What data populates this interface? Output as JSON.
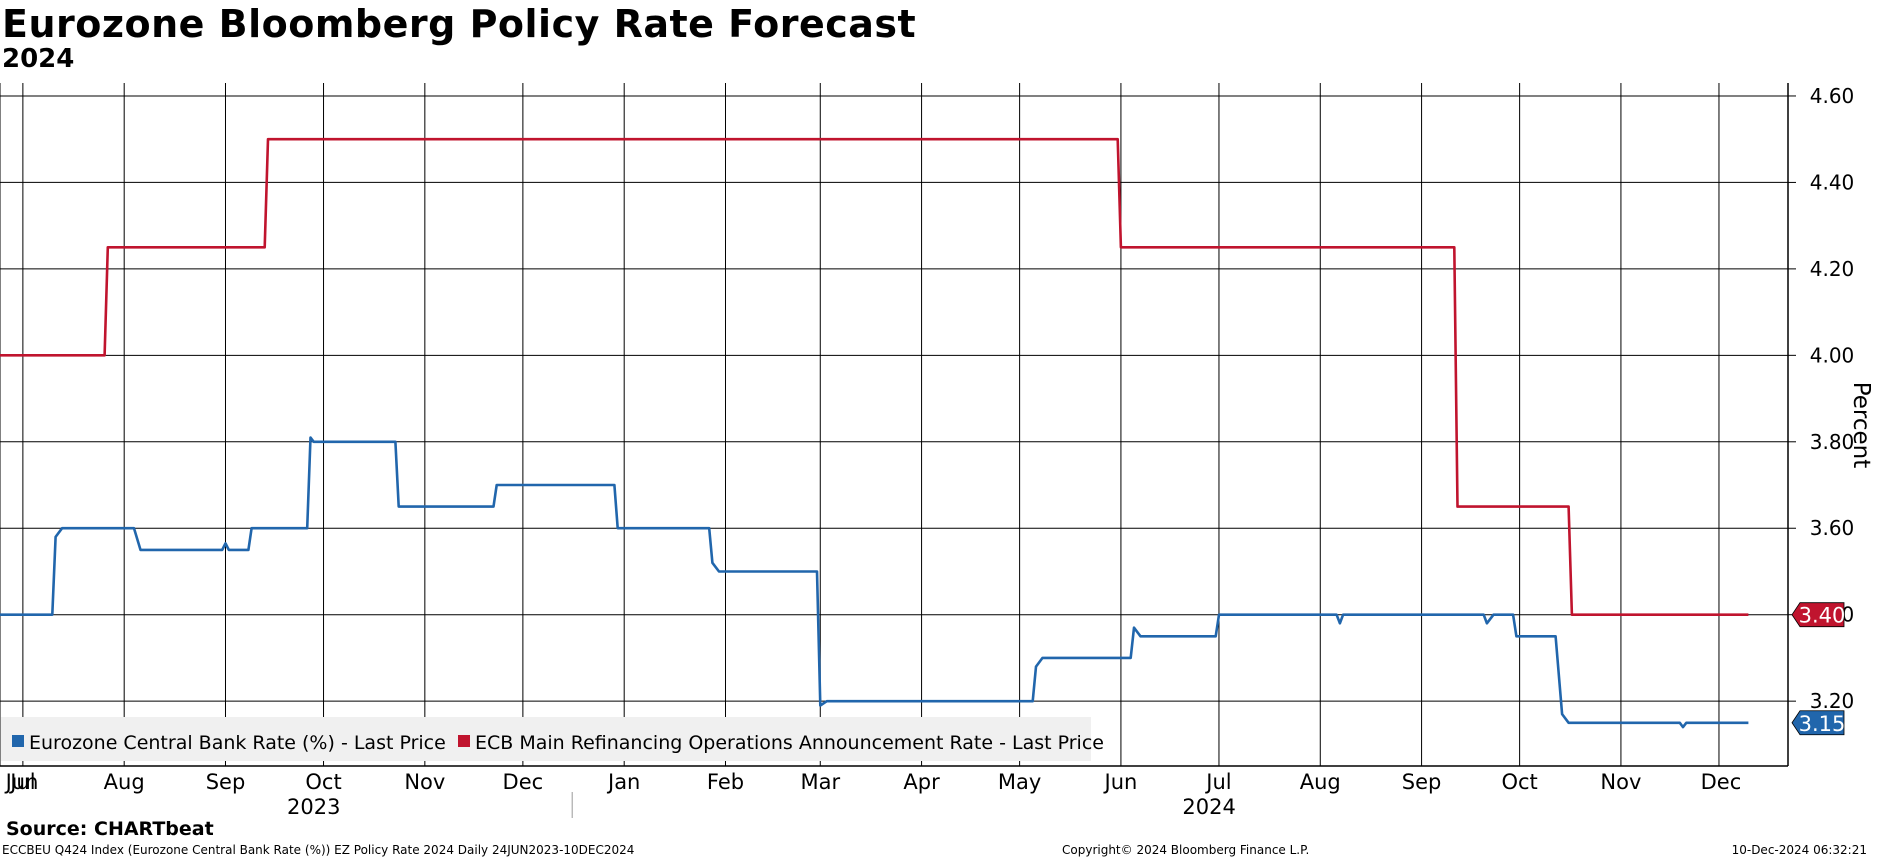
{
  "header": {
    "title": "Eurozone Bloomberg Policy Rate Forecast",
    "subtitle": "2024"
  },
  "footer": {
    "source": "Source: CHARTbeat",
    "description": "ECCBEU Q424 Index (Eurozone Central Bank Rate (%)) EZ Policy Rate 2024  Daily 24JUN2023-10DEC2024",
    "copyright": "Copyright© 2024 Bloomberg Finance L.P.",
    "timestamp": "10-Dec-2024 06:32:21"
  },
  "chart_data": {
    "type": "line",
    "title": "Eurozone Bloomberg Policy Rate Forecast",
    "subtitle": "2024",
    "xlabel": "",
    "ylabel": "Percent",
    "x_range": [
      "2023-06-24",
      "2024-12-10"
    ],
    "ylim": [
      3.05,
      4.63
    ],
    "y_ticks": [
      "3.20",
      "3.40",
      "3.60",
      "3.80",
      "4.00",
      "4.20",
      "4.40",
      "4.60"
    ],
    "x_tick_labels": [
      "Jun",
      "Jul",
      "Aug",
      "Sep",
      "Oct",
      "Nov",
      "Dec",
      "Jan",
      "Feb",
      "Mar",
      "Apr",
      "May",
      "Jun",
      "Jul",
      "Aug",
      "Sep",
      "Oct",
      "Nov",
      "Dec"
    ],
    "x_tick_dates": [
      "2023-06-24",
      "2023-07-01",
      "2023-08-01",
      "2023-09-01",
      "2023-10-01",
      "2023-11-01",
      "2023-12-01",
      "2024-01-01",
      "2024-02-01",
      "2024-03-01",
      "2024-04-01",
      "2024-05-01",
      "2024-06-01",
      "2024-07-01",
      "2024-08-01",
      "2024-09-01",
      "2024-10-01",
      "2024-11-01",
      "2024-12-01"
    ],
    "year_labels": [
      {
        "label": "2023",
        "date": "2023-09-28"
      },
      {
        "label": "2024",
        "date": "2024-06-28"
      }
    ],
    "year_divider": "2024-01-01",
    "grid": true,
    "legend_position": "bottom-left",
    "series": [
      {
        "name": "Eurozone Central Bank Rate (%) - Last Price",
        "color": "#2166ac",
        "last_value": "3.15",
        "points": [
          [
            "2023-06-24",
            3.4
          ],
          [
            "2023-07-10",
            3.4
          ],
          [
            "2023-07-11",
            3.58
          ],
          [
            "2023-07-13",
            3.6
          ],
          [
            "2023-08-04",
            3.6
          ],
          [
            "2023-08-06",
            3.55
          ],
          [
            "2023-08-31",
            3.55
          ],
          [
            "2023-09-01",
            3.565
          ],
          [
            "2023-09-02",
            3.55
          ],
          [
            "2023-09-08",
            3.55
          ],
          [
            "2023-09-09",
            3.6
          ],
          [
            "2023-09-26",
            3.6
          ],
          [
            "2023-09-27",
            3.81
          ],
          [
            "2023-09-28",
            3.8
          ],
          [
            "2023-10-23",
            3.8
          ],
          [
            "2023-10-24",
            3.65
          ],
          [
            "2023-11-22",
            3.65
          ],
          [
            "2023-11-23",
            3.7
          ],
          [
            "2023-12-29",
            3.7
          ],
          [
            "2023-12-30",
            3.6
          ],
          [
            "2024-01-27",
            3.6
          ],
          [
            "2024-01-28",
            3.52
          ],
          [
            "2024-01-30",
            3.5
          ],
          [
            "2024-02-29",
            3.5
          ],
          [
            "2024-03-01",
            3.19
          ],
          [
            "2024-03-03",
            3.2
          ],
          [
            "2024-05-05",
            3.2
          ],
          [
            "2024-05-06",
            3.28
          ],
          [
            "2024-05-08",
            3.3
          ],
          [
            "2024-06-04",
            3.3
          ],
          [
            "2024-06-05",
            3.37
          ],
          [
            "2024-06-07",
            3.35
          ],
          [
            "2024-06-30",
            3.35
          ],
          [
            "2024-07-01",
            3.4
          ],
          [
            "2024-08-06",
            3.4
          ],
          [
            "2024-08-07",
            3.38
          ],
          [
            "2024-08-08",
            3.4
          ],
          [
            "2024-09-20",
            3.4
          ],
          [
            "2024-09-21",
            3.38
          ],
          [
            "2024-09-23",
            3.4
          ],
          [
            "2024-09-29",
            3.4
          ],
          [
            "2024-09-30",
            3.35
          ],
          [
            "2024-10-12",
            3.35
          ],
          [
            "2024-10-14",
            3.17
          ],
          [
            "2024-10-16",
            3.15
          ],
          [
            "2024-11-19",
            3.15
          ],
          [
            "2024-11-20",
            3.14
          ],
          [
            "2024-11-21",
            3.15
          ],
          [
            "2024-12-10",
            3.15
          ]
        ]
      },
      {
        "name": "ECB Main Refinancing Operations Announcement Rate - Last Price",
        "color": "#c0142e",
        "last_value": "3.40",
        "points": [
          [
            "2023-06-24",
            4.0
          ],
          [
            "2023-07-26",
            4.0
          ],
          [
            "2023-07-27",
            4.25
          ],
          [
            "2023-09-13",
            4.25
          ],
          [
            "2023-09-14",
            4.5
          ],
          [
            "2024-05-31",
            4.5
          ],
          [
            "2024-06-01",
            4.25
          ],
          [
            "2024-09-11",
            4.25
          ],
          [
            "2024-09-12",
            3.65
          ],
          [
            "2024-10-16",
            3.65
          ],
          [
            "2024-10-17",
            3.4
          ],
          [
            "2024-12-10",
            3.4
          ]
        ]
      }
    ]
  }
}
